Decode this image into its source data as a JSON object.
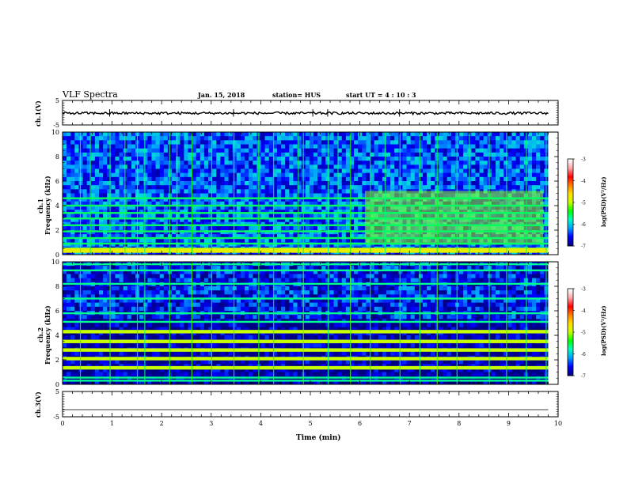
{
  "header": {
    "title": "VLF Spectra",
    "date": "Jan. 15, 2018",
    "station": "station= HUS",
    "start": "start  UT  =   4 : 10 : 3"
  },
  "chart_data": {
    "type": "heatmap",
    "x_label": "Time  (min)",
    "xlim": [
      0,
      10
    ],
    "x_ticks": [
      "0",
      "1",
      "2",
      "3",
      "4",
      "5",
      "6",
      "7",
      "8",
      "9",
      "10"
    ],
    "data_end_min": 9.8,
    "panels": [
      {
        "name": "ch.1 waveform",
        "type": "line",
        "ylabel": "ch.1(V)",
        "ylim": [
          -5,
          5
        ],
        "y_ticks": [
          "5",
          "-5"
        ],
        "baseline": -0.2,
        "noise_amplitude": 0.5,
        "spikes_min": [
          0.95,
          3.45,
          5.05,
          5.35,
          6.8
        ]
      },
      {
        "name": "ch.1 spectrogram",
        "type": "heatmap",
        "channel_label": "ch.1",
        "ylabel": "Frequency (kHz)",
        "ylim": [
          0,
          10
        ],
        "y_ticks": [
          "0",
          "2",
          "4",
          "6",
          "8",
          "10"
        ],
        "background_log_psd": -6.4,
        "horizontal_lines_khz": [
          0.3,
          0.5,
          0.9,
          1.35,
          1.9,
          2.4,
          2.95,
          3.4,
          4.0,
          4.6
        ],
        "line_log_psd": -5.6,
        "low_band": {
          "range_khz": [
            0.15,
            0.55
          ],
          "log_psd": -4.8
        },
        "enhanced_region": {
          "t_min": [
            6.1,
            9.7
          ],
          "f_khz": [
            0.8,
            5.2
          ],
          "log_psd": -5.1
        },
        "vertical_sferics_min": [
          0.35,
          0.55,
          0.95,
          1.25,
          1.5,
          1.65,
          2.15,
          2.3,
          2.6,
          3.0,
          3.45,
          3.95,
          4.25,
          4.75,
          4.85,
          5.35,
          5.55,
          5.8,
          6.2,
          6.5,
          6.8,
          7.2,
          7.55,
          7.95,
          8.2,
          8.6,
          8.95,
          9.35,
          9.75
        ]
      },
      {
        "name": "ch.2 spectrogram",
        "type": "heatmap",
        "channel_label": "ch.2",
        "ylabel": "Frequency (kHz)",
        "ylim": [
          0,
          10
        ],
        "y_ticks": [
          "0",
          "2",
          "4",
          "6",
          "8",
          "10"
        ],
        "background_log_psd": -6.6,
        "horizontal_lines_khz": [
          0.3,
          0.55,
          1.35,
          2.1,
          2.8,
          3.5,
          4.3,
          5.1,
          5.8,
          7.0,
          8.2,
          9.3,
          9.8
        ],
        "strong_lines_khz": [
          1.35,
          2.1,
          2.8,
          3.5,
          4.3
        ],
        "line_log_psd": -5.7,
        "strong_line_log_psd": -5.0,
        "vertical_sferics_min": [
          0.35,
          0.95,
          1.5,
          1.65,
          2.15,
          2.6,
          3.0,
          3.45,
          3.95,
          4.25,
          4.85,
          5.35,
          5.8,
          6.2,
          6.8,
          7.2,
          7.55,
          7.95,
          8.6,
          8.95,
          9.35,
          9.75
        ]
      },
      {
        "name": "ch.3 waveform",
        "type": "line",
        "ylabel": "ch.3(V)",
        "ylim": [
          -5,
          5
        ],
        "y_ticks": [
          "5",
          "-5"
        ],
        "baseline": -2.2,
        "noise_amplitude": 0
      }
    ],
    "colorbar": {
      "label": "log(PSD)(V²/Hz)",
      "range": [
        -7,
        -3
      ],
      "ticks": [
        "-3",
        "-4",
        "-5",
        "-6",
        "-7"
      ],
      "colors": [
        "#000080",
        "#0000ff",
        "#00a0ff",
        "#00ffc0",
        "#00ff00",
        "#c8ff00",
        "#ffe000",
        "#ff8000",
        "#ff0000",
        "#ffa8a8",
        "#ffffff"
      ]
    }
  }
}
